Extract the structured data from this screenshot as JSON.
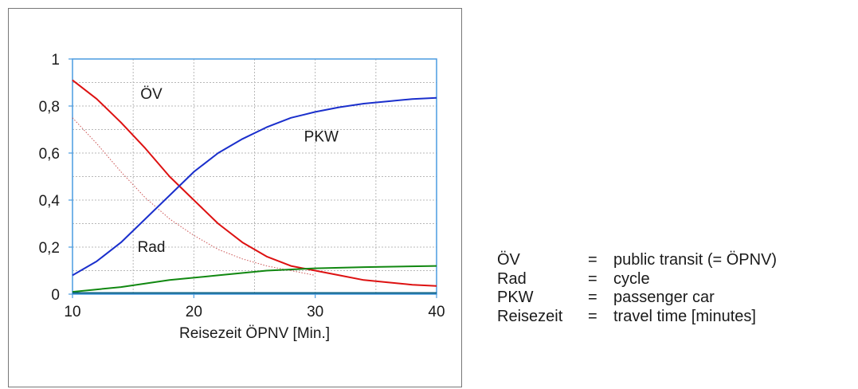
{
  "colors": {
    "ov": "#dd1111",
    "ov_dotted": "#cc5555",
    "pkw": "#1a2fcc",
    "rad": "#118811",
    "axis": "#4a9be0",
    "grid": "#b8b8b8",
    "frame": "#777777"
  },
  "chart_data": {
    "type": "line",
    "title": "",
    "xlabel": "Reisezeit ÖPNV  [Min.]",
    "ylabel": "",
    "xlim": [
      10,
      40
    ],
    "ylim": [
      0,
      1
    ],
    "grid": true,
    "x_ticks": [
      10,
      20,
      30,
      40
    ],
    "x_tick_labels": [
      "10",
      "20",
      "30",
      "40"
    ],
    "y_ticks": [
      0,
      0.2,
      0.4,
      0.6,
      0.8,
      1
    ],
    "y_tick_labels": [
      "0",
      "0,2",
      "0,4",
      "0,6",
      "0,8",
      "1"
    ],
    "series": [
      {
        "name": "ÖV",
        "style": "solid",
        "color": "#dd1111",
        "x": [
          10,
          12,
          14,
          16,
          18,
          20,
          22,
          24,
          26,
          28,
          30,
          32,
          34,
          36,
          38,
          40
        ],
        "y": [
          0.91,
          0.83,
          0.73,
          0.62,
          0.5,
          0.4,
          0.3,
          0.22,
          0.16,
          0.12,
          0.1,
          0.08,
          0.06,
          0.05,
          0.04,
          0.035
        ]
      },
      {
        "name": "",
        "style": "dotted",
        "color": "#cc5555",
        "x": [
          10,
          12,
          14,
          16,
          18,
          20,
          22,
          24,
          26,
          28,
          30
        ],
        "y": [
          0.75,
          0.64,
          0.52,
          0.41,
          0.32,
          0.25,
          0.19,
          0.15,
          0.12,
          0.1,
          0.08
        ]
      },
      {
        "name": "PKW",
        "style": "solid",
        "color": "#1a2fcc",
        "x": [
          10,
          12,
          14,
          16,
          18,
          20,
          22,
          24,
          26,
          28,
          30,
          32,
          34,
          36,
          38,
          40
        ],
        "y": [
          0.08,
          0.14,
          0.22,
          0.32,
          0.42,
          0.52,
          0.6,
          0.66,
          0.71,
          0.75,
          0.775,
          0.795,
          0.81,
          0.82,
          0.83,
          0.835
        ]
      },
      {
        "name": "Rad",
        "style": "solid",
        "color": "#118811",
        "x": [
          10,
          14,
          18,
          22,
          26,
          30,
          34,
          40
        ],
        "y": [
          0.01,
          0.03,
          0.06,
          0.08,
          0.1,
          0.11,
          0.115,
          0.12
        ]
      },
      {
        "name": "",
        "style": "solid",
        "color": "#116688",
        "x": [
          10,
          40
        ],
        "y": [
          0.005,
          0.005
        ]
      }
    ],
    "annotations": [
      {
        "text": "ÖV",
        "x": 16.5,
        "y": 0.83
      },
      {
        "text": "PKW",
        "x": 30.5,
        "y": 0.65
      },
      {
        "text": "Rad",
        "x": 16.5,
        "y": 0.18
      }
    ]
  },
  "legend": [
    {
      "abbr": "ÖV",
      "eq": "=",
      "desc": "public transit (= ÖPNV)"
    },
    {
      "abbr": "Rad",
      "eq": "=",
      "desc": "cycle"
    },
    {
      "abbr": "PKW",
      "eq": "=",
      "desc": "passenger car"
    },
    {
      "abbr": "Reisezeit",
      "eq": "=",
      "desc": "travel time [minutes]"
    }
  ]
}
